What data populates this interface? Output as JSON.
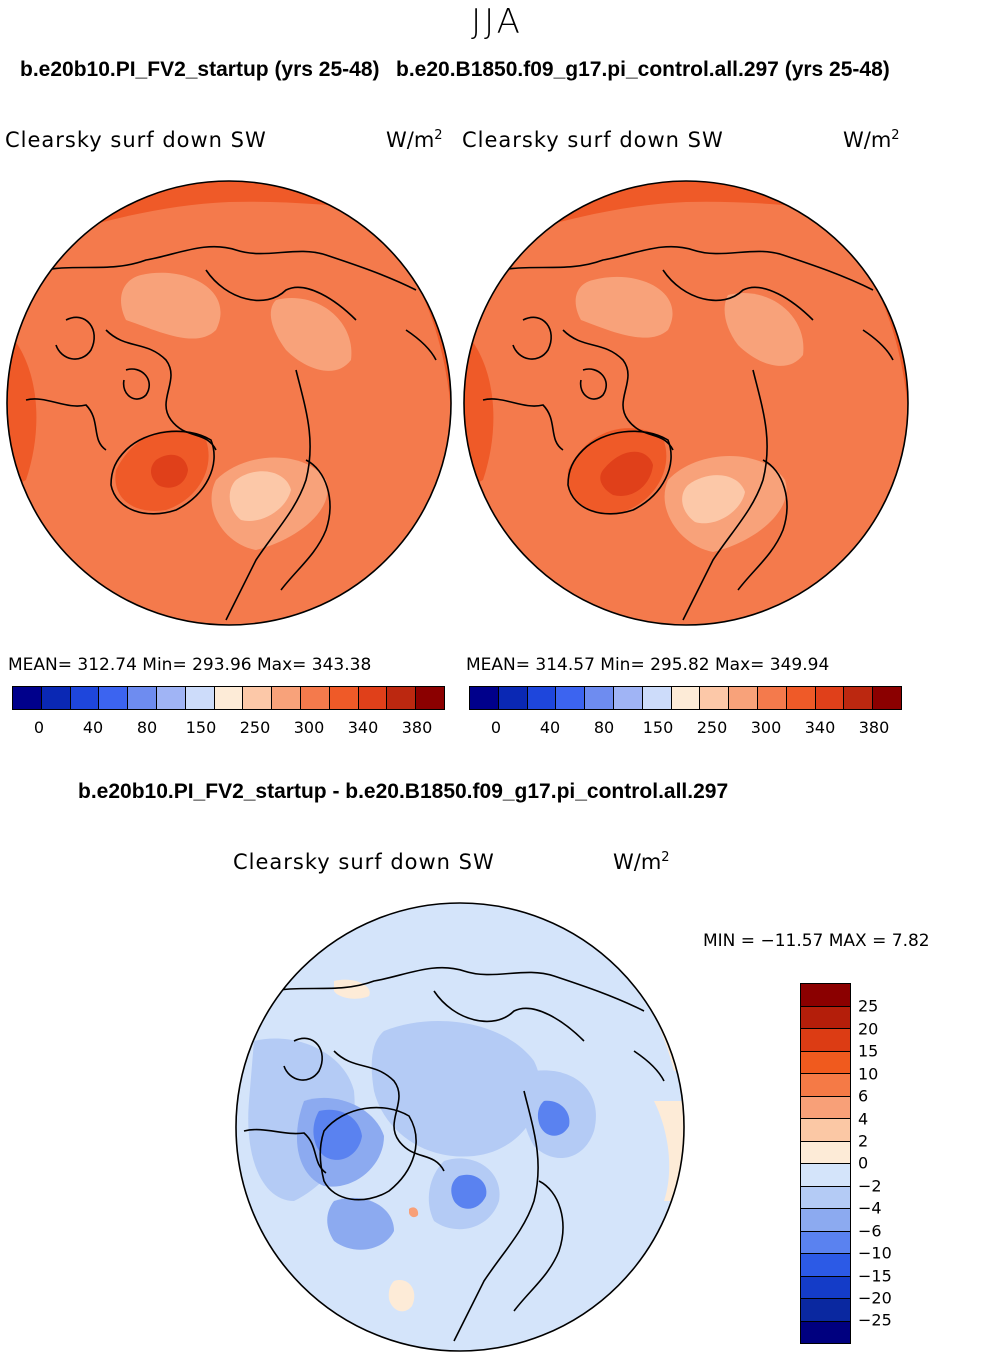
{
  "header": {
    "season": "JJA",
    "left_run_title": "b.e20b10.PI_FV2_startup (yrs 25-48)",
    "right_run_title": "b.e20.B1850.f09_g17.pi_control.all.297 (yrs 25-48)",
    "diff_title": "b.e20b10.PI_FV2_startup - b.e20.B1850.f09_g17.pi_control.all.297"
  },
  "panels": {
    "left": {
      "variable": "Clearsky surf down SW",
      "units": "W/m",
      "units_sup": "2",
      "stats": "MEAN= 312.74   Min= 293.96   Max= 343.38"
    },
    "right": {
      "variable": "Clearsky surf down SW",
      "units": "W/m",
      "units_sup": "2",
      "stats": "MEAN= 314.57   Min= 295.82   Max= 349.94"
    },
    "diff": {
      "variable": "Clearsky surf down SW",
      "units": "W/m",
      "units_sup": "2",
      "stats": "MIN = −11.57 MAX =    7.82"
    }
  },
  "colorbars": {
    "abs_tick_labels": [
      "0",
      "40",
      "80",
      "150",
      "250",
      "300",
      "340",
      "380"
    ],
    "abs_colors": [
      "#00008b",
      "#0a28b4",
      "#1e46dc",
      "#3c64f0",
      "#6e8cf0",
      "#a0b4f5",
      "#cddcfa",
      "#fdebd7",
      "#fcc8a8",
      "#f8a27a",
      "#f47a4c",
      "#ef5a28",
      "#e0401a",
      "#bc2810",
      "#8b0000"
    ],
    "diff_labels": [
      "25",
      "20",
      "15",
      "10",
      "6",
      "4",
      "2",
      "0",
      "−2",
      "−4",
      "−6",
      "−10",
      "−15",
      "−20",
      "−25"
    ],
    "diff_colors": [
      "#8b0000",
      "#b41e0a",
      "#dc3c14",
      "#f05a1e",
      "#f57a46",
      "#f8a078",
      "#fbc8a5",
      "#fdebd7",
      "#d4e4fa",
      "#b4cbf5",
      "#8caaf0",
      "#5a82f0",
      "#2c5ae6",
      "#143cc8",
      "#0a28a0",
      "#00007f"
    ]
  },
  "map_colors": {
    "ocean": "#f47a4c",
    "dark": "#ef5a28",
    "darker": "#e0401a",
    "light": "#f8a27a",
    "lightest": "#fcc8a8",
    "diff_base": "#d4e4fa",
    "diff_mid": "#b4cbf5",
    "diff_blue": "#8caaf0",
    "diff_dark": "#5a82f0",
    "diff_warm": "#fdebd7",
    "diff_orange": "#f8a078"
  }
}
